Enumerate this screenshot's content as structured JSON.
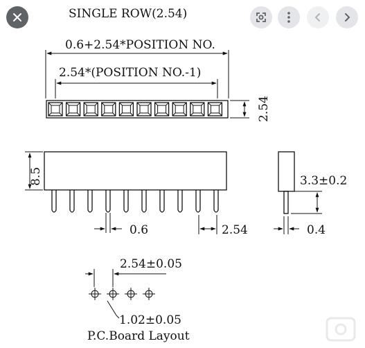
{
  "drawing": {
    "title": "SINGLE ROW(2.54)",
    "total_length": "0.6+2.54*POSITION NO.",
    "pitch_span": "2.54*(POSITION NO.-1)",
    "row_height": "2.54",
    "body_height": "8.5",
    "pin_width": "0.6",
    "pin_pitch": "2.54",
    "pin_length": "3.3±0.2",
    "pin_thickness": "0.4",
    "pcb_pitch": "2.54±0.05",
    "pcb_hole": "1.02±0.05",
    "pcb_caption": "P.C.Board Layout"
  },
  "overlay": {
    "close_icon": "close-icon",
    "lens_icon": "lens-icon",
    "more_icon": "more-icon",
    "prev_icon": "chevron-left-icon",
    "next_icon": "chevron-right-icon"
  }
}
